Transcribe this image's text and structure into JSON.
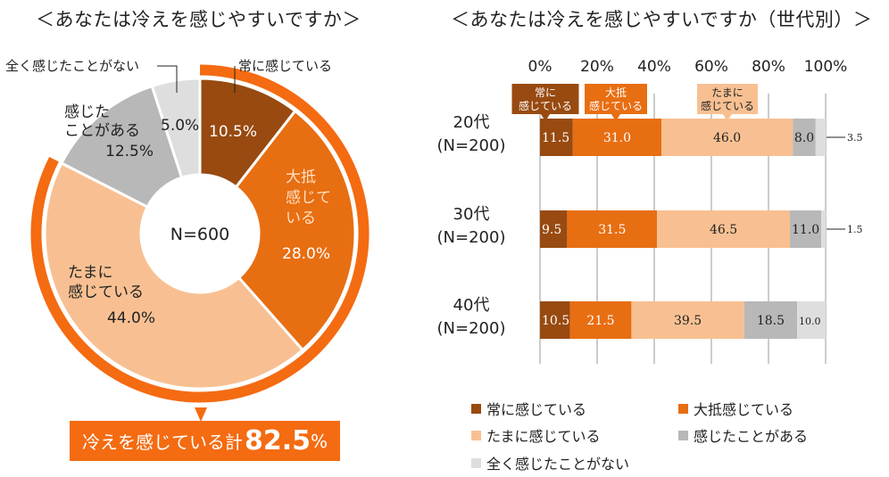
{
  "colors": {
    "always": "#984a10",
    "mostly": "#e86e12",
    "sometimes": "#f8c092",
    "occasional": "#b8b8b8",
    "never": "#dedede",
    "accent": "#f46b12"
  },
  "left": {
    "title": "＜あなたは冷えを感じやすいですか＞",
    "center_label": "N=600",
    "total_text": "冷えを感じている計",
    "total_value": "82.5",
    "total_unit": "%"
  },
  "right": {
    "title": "＜あなたは冷えを感じやすいですか（世代別）＞"
  },
  "chart_data": [
    {
      "type": "pie",
      "variant": "donut",
      "categories": [
        "常に感じている",
        "大抵感じている",
        "たまに感じている",
        "感じたことがある",
        "全く感じたことがない"
      ],
      "values": [
        10.5,
        28.0,
        44.0,
        12.5,
        5.0
      ],
      "value_labels": [
        "10.5%",
        "28.0%",
        "44.0%",
        "12.5%",
        "5.0%"
      ],
      "slice_labels": [
        "常に感じている",
        "大抵\n感じて\nいる",
        "たまに\n感じている",
        "感じた\nことがある",
        "全く感じたことがない"
      ]
    },
    {
      "type": "bar",
      "orientation": "horizontal",
      "stacked": true,
      "categories": [
        "20代\n(N=200)",
        "30代\n(N=200)",
        "40代\n(N=200)"
      ],
      "xlim": [
        0,
        100
      ],
      "x_ticks": [
        "0%",
        "20%",
        "40%",
        "60%",
        "80%",
        "100%"
      ],
      "series": [
        {
          "name": "常に感じている",
          "values": [
            11.5,
            9.5,
            10.5
          ]
        },
        {
          "name": "大抵感じている",
          "values": [
            31.0,
            31.5,
            21.5
          ]
        },
        {
          "name": "たまに感じている",
          "values": [
            46.0,
            46.5,
            39.5
          ]
        },
        {
          "name": "感じたことがある",
          "values": [
            8.0,
            11.0,
            18.5
          ]
        },
        {
          "name": "全く感じたことがない",
          "values": [
            3.5,
            1.5,
            10.0
          ]
        }
      ],
      "callouts": [
        "常に\n感じている",
        "大抵\n感じている",
        "たまに\n感じている"
      ],
      "legend": [
        "常に感じている",
        "大抵感じている",
        "たまに感じている",
        "感じたことがある",
        "全く感じたことがない"
      ],
      "legend_position": "bottom"
    }
  ]
}
